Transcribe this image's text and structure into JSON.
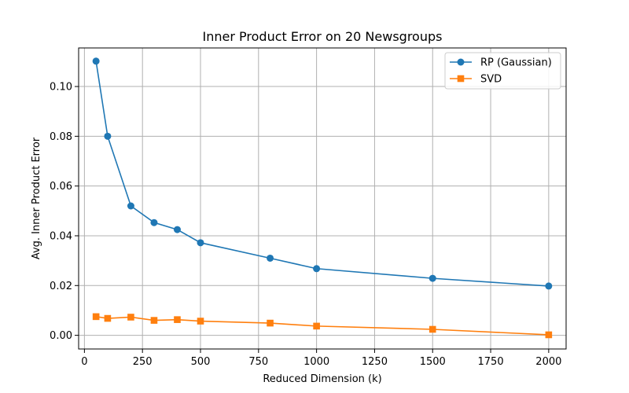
{
  "chart_data": {
    "type": "line",
    "title": "Inner Product Error on 20 Newsgroups",
    "xlabel": "Reduced Dimension (k)",
    "ylabel": "Avg. Inner Product Error",
    "xlim": [
      -25,
      2075
    ],
    "ylim": [
      -0.0055,
      0.1155
    ],
    "xticks": [
      0,
      250,
      500,
      750,
      1000,
      1250,
      1500,
      1750,
      2000
    ],
    "xtick_labels": [
      "0",
      "250",
      "500",
      "750",
      "1000",
      "1250",
      "1500",
      "1750",
      "2000"
    ],
    "yticks": [
      0.0,
      0.02,
      0.04,
      0.06,
      0.08,
      0.1
    ],
    "ytick_labels": [
      "0.00",
      "0.02",
      "0.04",
      "0.06",
      "0.08",
      "0.10"
    ],
    "grid": true,
    "legend_position": "top-right",
    "x": [
      50,
      100,
      200,
      300,
      400,
      500,
      800,
      1000,
      1500,
      2000
    ],
    "series": [
      {
        "name": "RP (Gaussian)",
        "color": "#1f77b4",
        "marker": "circle",
        "values": [
          0.1102,
          0.08,
          0.052,
          0.0453,
          0.0425,
          0.0372,
          0.031,
          0.0268,
          0.0229,
          0.0198
        ]
      },
      {
        "name": "SVD",
        "color": "#ff7f0e",
        "marker": "square",
        "values": [
          0.0075,
          0.0068,
          0.0073,
          0.006,
          0.0063,
          0.0057,
          0.0049,
          0.0037,
          0.0024,
          0.0002
        ]
      }
    ]
  }
}
